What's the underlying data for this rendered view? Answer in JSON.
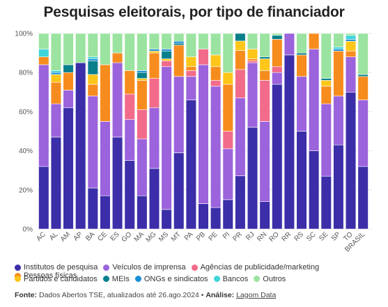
{
  "chart_data": {
    "type": "bar",
    "stacked": true,
    "normalized": true,
    "title": "Pesquisas eleitorais, por tipo de financiador",
    "y_ticks": [
      "0%",
      "20%",
      "40%",
      "60%",
      "80%",
      "100%"
    ],
    "ylim": [
      0,
      100
    ],
    "grid": true,
    "legend_position": "bottom",
    "categories": [
      "AC",
      "AL",
      "AM",
      "AP",
      "BA",
      "CE",
      "ES",
      "GO",
      "MA",
      "MG",
      "MS",
      "MT",
      "PA",
      "PB",
      "PE",
      "PI",
      "PR",
      "RJ",
      "RN",
      "RO",
      "RR",
      "RS",
      "SC",
      "SE",
      "SP",
      "TO",
      "BRASIL"
    ],
    "series": [
      {
        "name": "Institutos de pesquisa",
        "color": "#3b2ea8",
        "values": [
          32,
          47,
          62,
          85,
          21,
          17,
          47,
          35,
          17,
          31,
          10,
          39,
          66,
          13,
          11,
          15,
          28,
          52,
          14,
          74,
          89,
          50,
          40,
          27,
          43,
          70,
          32
        ]
      },
      {
        "name": "Veículos de imprensa",
        "color": "#9b63dc",
        "values": [
          52,
          17,
          9,
          0,
          47,
          38,
          38,
          21,
          29,
          31,
          73,
          39,
          12,
          71,
          62,
          26,
          41,
          33,
          41,
          6,
          11,
          28,
          52,
          37,
          25,
          18,
          34
        ]
      },
      {
        "name": "Agências de publicidade/marketing",
        "color": "#f26b8a",
        "values": [
          0,
          0,
          0,
          0,
          0,
          0,
          0,
          13,
          15,
          15,
          3,
          0,
          3,
          8,
          3,
          9,
          15,
          1,
          21,
          3,
          0,
          0,
          0,
          0,
          0,
          0,
          0
        ]
      },
      {
        "name": "Pessoas físicas",
        "color": "#f78c1e",
        "values": [
          4,
          11,
          9,
          0,
          6,
          29,
          5,
          12,
          15,
          13,
          0,
          16,
          2,
          0,
          7,
          24,
          10,
          1,
          5,
          14,
          0,
          11,
          8,
          9,
          23,
          3,
          12
        ]
      },
      {
        "name": "Partidos e candidatos",
        "color": "#ffc61a",
        "values": [
          0,
          4,
          0,
          0,
          5,
          0,
          0,
          0,
          1,
          1,
          1,
          0,
          5,
          0,
          6,
          6,
          5,
          5,
          6,
          0,
          0,
          0,
          0,
          3,
          0,
          5,
          0
        ]
      },
      {
        "name": "MEIs",
        "color": "#0a7f8c",
        "values": [
          0,
          0,
          4,
          0,
          7,
          0,
          0,
          0,
          3,
          0,
          4,
          1,
          0,
          0,
          0,
          0,
          4,
          0,
          1,
          2,
          0,
          1,
          0,
          1,
          0,
          0,
          1
        ]
      },
      {
        "name": "ONGs e sindicatos",
        "color": "#1a8fd6",
        "values": [
          0,
          1,
          0,
          0,
          1,
          0,
          0,
          0,
          1,
          1,
          1,
          1,
          0,
          0,
          0,
          0,
          0,
          0,
          0,
          0,
          0,
          0,
          0,
          0,
          1,
          1,
          0
        ]
      },
      {
        "name": "Bancos",
        "color": "#3fd5db",
        "values": [
          4,
          1,
          0,
          0,
          1,
          0,
          0,
          0,
          0,
          0,
          0,
          0,
          0,
          0,
          0,
          0,
          0,
          0,
          0,
          0,
          0,
          0,
          0,
          0,
          1,
          2,
          0
        ]
      },
      {
        "name": "Outros",
        "color": "#9be3a0",
        "values": [
          8,
          19,
          16,
          15,
          12,
          16,
          10,
          19,
          19,
          8,
          8,
          4,
          12,
          8,
          11,
          20,
          0,
          8,
          12,
          1,
          0,
          10,
          0,
          23,
          7,
          1,
          21
        ]
      }
    ]
  },
  "footer": {
    "fonte_label": "Fonte:",
    "fonte_text": " Dados Abertos TSE, atualizados até 26.ago.2024 • ",
    "analise_label": "Análise:",
    "analise_link": "Lagom Data"
  }
}
